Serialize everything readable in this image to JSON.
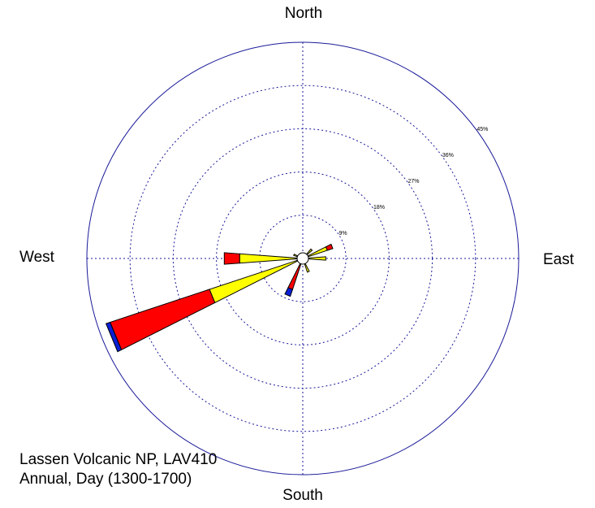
{
  "chart_data": {
    "type": "windrose",
    "direction_labels": {
      "north": "North",
      "east": "East",
      "south": "South",
      "west": "West"
    },
    "ring_values": [
      9,
      18,
      27,
      36,
      45
    ],
    "ring_labels": [
      "9%",
      "18%",
      "27%",
      "36%",
      "45%"
    ],
    "rmax": 45,
    "grid": true,
    "colors": {
      "blue": "#0b1fd6",
      "red": "#ff0000",
      "yellow": "#ffff00",
      "grid": "#1a1a99",
      "center": "#ffffff"
    },
    "petals": [
      {
        "direction": 67.5,
        "segments": [
          {
            "color": "yellow",
            "value": 5.4
          },
          {
            "color": "red",
            "value": 1.2
          }
        ]
      },
      {
        "direction": 45,
        "segments": [
          {
            "color": "yellow",
            "value": 2.6
          }
        ]
      },
      {
        "direction": 90,
        "segments": [
          {
            "color": "yellow",
            "value": 4.8
          }
        ]
      },
      {
        "direction": 112.5,
        "segments": [
          {
            "color": "yellow",
            "value": 1.0
          }
        ]
      },
      {
        "direction": 157.5,
        "segments": [
          {
            "color": "blue",
            "value": 1.0
          },
          {
            "color": "yellow",
            "value": 2.0
          }
        ]
      },
      {
        "direction": 202.5,
        "segments": [
          {
            "color": "yellow",
            "value": 1.3
          },
          {
            "color": "red",
            "value": 5.5
          },
          {
            "color": "blue",
            "value": 1.5
          }
        ]
      },
      {
        "direction": 247.5,
        "segments": [
          {
            "color": "yellow",
            "value": 20.5
          },
          {
            "color": "red",
            "value": 21.8
          },
          {
            "color": "blue",
            "value": 0.9
          }
        ]
      },
      {
        "direction": 270,
        "segments": [
          {
            "color": "yellow",
            "value": 13.2
          },
          {
            "color": "red",
            "value": 3.2
          }
        ]
      },
      {
        "direction": 292.5,
        "segments": [
          {
            "color": "yellow",
            "value": 2.0
          }
        ]
      }
    ]
  },
  "caption": {
    "line1": "Lassen Volcanic NP, LAV410",
    "line2": "Annual, Day (1300-1700)"
  }
}
